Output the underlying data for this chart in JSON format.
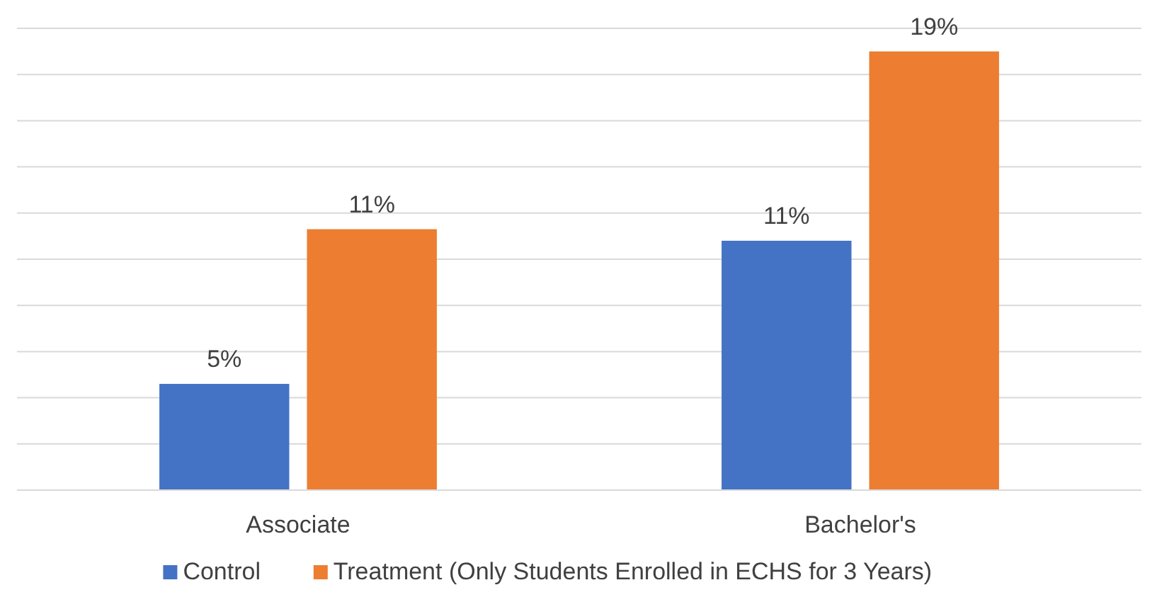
{
  "chart_data": {
    "type": "bar",
    "categories": [
      "Associate",
      "Bachelor's"
    ],
    "series": [
      {
        "name": "Control",
        "color": "#4472c4",
        "values": [
          4.6,
          10.8
        ],
        "value_labels": [
          "5%",
          "11%"
        ]
      },
      {
        "name": "Treatment (Only Students Enrolled in ECHS for 3 Years)",
        "color": "#ed7d31",
        "values": [
          11.3,
          19.0
        ],
        "value_labels": [
          "11%",
          "19%"
        ]
      }
    ],
    "ylim": [
      0,
      20
    ],
    "yticks": [
      {
        "value": 0,
        "label": null
      },
      {
        "value": 2,
        "label": null
      },
      {
        "value": 4,
        "label": null
      },
      {
        "value": 6,
        "label": null
      },
      {
        "value": 8,
        "label": null
      },
      {
        "value": 10,
        "label": null
      },
      {
        "value": 12,
        "label": null
      },
      {
        "value": 14,
        "label": null
      },
      {
        "value": 16,
        "label": null
      },
      {
        "value": 18,
        "label": null
      },
      {
        "value": 20,
        "label": null
      }
    ],
    "tick_labels": "x",
    "grid": "y",
    "legend": "bottom"
  }
}
